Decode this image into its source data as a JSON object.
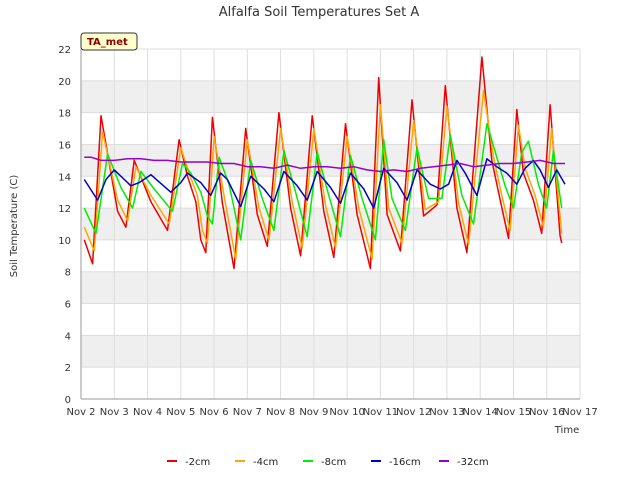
{
  "chart_data": {
    "type": "line",
    "title": "Alfalfa Soil Temperatures Set A",
    "xlabel": "Time",
    "ylabel": "Soil Temperature (C)",
    "badge": "TA_met",
    "ylim": [
      0,
      22
    ],
    "y_ticks": [
      0,
      2,
      4,
      6,
      8,
      10,
      12,
      14,
      16,
      18,
      20,
      22
    ],
    "x_range": [
      2,
      17
    ],
    "x_ticks": [
      {
        "v": 2,
        "label": "Nov 2"
      },
      {
        "v": 3,
        "label": "Nov 3"
      },
      {
        "v": 4,
        "label": "Nov 4"
      },
      {
        "v": 5,
        "label": "Nov 5"
      },
      {
        "v": 6,
        "label": "Nov 6"
      },
      {
        "v": 7,
        "label": "Nov 7"
      },
      {
        "v": 8,
        "label": "Nov 8"
      },
      {
        "v": 9,
        "label": "Nov 9"
      },
      {
        "v": 10,
        "label": "Nov 10"
      },
      {
        "v": 11,
        "label": "Nov 11"
      },
      {
        "v": 12,
        "label": "Nov 12"
      },
      {
        "v": 13,
        "label": "Nov 13"
      },
      {
        "v": 14,
        "label": "Nov 14"
      },
      {
        "v": 15,
        "label": "Nov 15"
      },
      {
        "v": 16,
        "label": "Nov 16"
      },
      {
        "v": 17,
        "label": "Nov 17"
      }
    ],
    "grid": true,
    "legend_position": "bottom",
    "series": [
      {
        "name": "-2cm",
        "color": "#ee0000",
        "points": [
          [
            2.1,
            10.0
          ],
          [
            2.35,
            8.5
          ],
          [
            2.6,
            17.8
          ],
          [
            3.1,
            11.8
          ],
          [
            3.35,
            10.8
          ],
          [
            3.6,
            15.0
          ],
          [
            4.1,
            12.4
          ],
          [
            4.6,
            10.6
          ],
          [
            4.95,
            16.3
          ],
          [
            5.2,
            14.0
          ],
          [
            5.45,
            12.4
          ],
          [
            5.6,
            10.0
          ],
          [
            5.75,
            9.2
          ],
          [
            5.95,
            17.7
          ],
          [
            6.25,
            12.3
          ],
          [
            6.6,
            8.2
          ],
          [
            6.95,
            17.0
          ],
          [
            7.3,
            11.6
          ],
          [
            7.6,
            9.6
          ],
          [
            7.95,
            18.0
          ],
          [
            8.3,
            12.0
          ],
          [
            8.6,
            9.0
          ],
          [
            8.95,
            17.8
          ],
          [
            9.3,
            11.8
          ],
          [
            9.6,
            8.9
          ],
          [
            9.95,
            17.3
          ],
          [
            10.3,
            11.6
          ],
          [
            10.7,
            8.2
          ],
          [
            10.95,
            20.2
          ],
          [
            11.2,
            11.6
          ],
          [
            11.6,
            9.3
          ],
          [
            11.95,
            18.8
          ],
          [
            12.3,
            11.5
          ],
          [
            12.7,
            12.2
          ],
          [
            12.95,
            19.7
          ],
          [
            13.3,
            12.0
          ],
          [
            13.6,
            9.2
          ],
          [
            14.05,
            21.5
          ],
          [
            14.35,
            15.0
          ],
          [
            14.6,
            12.5
          ],
          [
            14.85,
            10.1
          ],
          [
            15.1,
            18.2
          ],
          [
            15.3,
            14.2
          ],
          [
            15.6,
            12.5
          ],
          [
            15.85,
            10.4
          ],
          [
            16.1,
            18.5
          ],
          [
            16.4,
            10.3
          ],
          [
            16.45,
            9.8
          ]
        ]
      },
      {
        "name": "-4cm",
        "color": "#ffa500",
        "points": [
          [
            2.1,
            10.8
          ],
          [
            2.4,
            9.3
          ],
          [
            2.65,
            16.8
          ],
          [
            3.1,
            12.5
          ],
          [
            3.4,
            11.2
          ],
          [
            3.65,
            14.6
          ],
          [
            4.1,
            12.8
          ],
          [
            4.65,
            11.0
          ],
          [
            5.0,
            15.8
          ],
          [
            5.25,
            14.2
          ],
          [
            5.5,
            12.8
          ],
          [
            5.65,
            10.6
          ],
          [
            5.8,
            9.8
          ],
          [
            6.0,
            16.5
          ],
          [
            6.3,
            12.8
          ],
          [
            6.65,
            8.8
          ],
          [
            7.0,
            16.3
          ],
          [
            7.35,
            12.0
          ],
          [
            7.65,
            10.0
          ],
          [
            8.0,
            17.0
          ],
          [
            8.35,
            12.4
          ],
          [
            8.65,
            9.5
          ],
          [
            9.0,
            17.0
          ],
          [
            9.35,
            12.2
          ],
          [
            9.65,
            9.5
          ],
          [
            10.0,
            16.5
          ],
          [
            10.35,
            12.0
          ],
          [
            10.75,
            8.8
          ],
          [
            11.0,
            18.5
          ],
          [
            11.25,
            12.0
          ],
          [
            11.65,
            9.8
          ],
          [
            12.0,
            17.5
          ],
          [
            12.35,
            11.9
          ],
          [
            12.75,
            12.4
          ],
          [
            13.0,
            18.4
          ],
          [
            13.35,
            12.3
          ],
          [
            13.65,
            9.7
          ],
          [
            14.1,
            19.4
          ],
          [
            14.4,
            15.2
          ],
          [
            14.65,
            12.8
          ],
          [
            14.9,
            10.6
          ],
          [
            15.15,
            17.2
          ],
          [
            15.35,
            14.5
          ],
          [
            15.65,
            12.8
          ],
          [
            15.9,
            10.8
          ],
          [
            16.15,
            17.0
          ],
          [
            16.45,
            10.4
          ]
        ]
      },
      {
        "name": "-8cm",
        "color": "#00ee00",
        "points": [
          [
            2.1,
            12.0
          ],
          [
            2.45,
            10.4
          ],
          [
            2.8,
            15.4
          ],
          [
            3.2,
            13.3
          ],
          [
            3.55,
            12.0
          ],
          [
            3.8,
            14.3
          ],
          [
            4.2,
            13.2
          ],
          [
            4.75,
            11.8
          ],
          [
            5.05,
            14.8
          ],
          [
            5.3,
            14.2
          ],
          [
            5.6,
            13.0
          ],
          [
            5.8,
            11.5
          ],
          [
            5.95,
            11.0
          ],
          [
            6.15,
            15.2
          ],
          [
            6.45,
            13.5
          ],
          [
            6.8,
            10.0
          ],
          [
            7.1,
            15.0
          ],
          [
            7.45,
            12.6
          ],
          [
            7.8,
            10.6
          ],
          [
            8.1,
            15.6
          ],
          [
            8.45,
            13.0
          ],
          [
            8.8,
            10.2
          ],
          [
            9.1,
            15.5
          ],
          [
            9.45,
            12.8
          ],
          [
            9.8,
            10.2
          ],
          [
            10.1,
            15.3
          ],
          [
            10.45,
            12.6
          ],
          [
            10.85,
            10.0
          ],
          [
            11.1,
            16.3
          ],
          [
            11.35,
            12.6
          ],
          [
            11.75,
            10.6
          ],
          [
            12.1,
            15.8
          ],
          [
            12.45,
            12.6
          ],
          [
            12.85,
            12.6
          ],
          [
            13.1,
            16.6
          ],
          [
            13.45,
            12.8
          ],
          [
            13.8,
            11.0
          ],
          [
            14.2,
            17.3
          ],
          [
            14.5,
            15.2
          ],
          [
            14.75,
            13.4
          ],
          [
            15.0,
            12.0
          ],
          [
            15.25,
            15.5
          ],
          [
            15.45,
            16.2
          ],
          [
            15.75,
            13.5
          ],
          [
            16.0,
            12.0
          ],
          [
            16.2,
            15.6
          ],
          [
            16.45,
            12.0
          ]
        ]
      },
      {
        "name": "-16cm",
        "color": "#0000cc",
        "points": [
          [
            2.1,
            13.8
          ],
          [
            2.5,
            12.5
          ],
          [
            2.75,
            13.8
          ],
          [
            3.0,
            14.4
          ],
          [
            3.5,
            13.4
          ],
          [
            3.75,
            13.6
          ],
          [
            4.1,
            14.1
          ],
          [
            4.7,
            13.0
          ],
          [
            5.0,
            13.6
          ],
          [
            5.2,
            14.2
          ],
          [
            5.6,
            13.6
          ],
          [
            5.9,
            12.8
          ],
          [
            6.2,
            14.2
          ],
          [
            6.4,
            13.8
          ],
          [
            6.8,
            12.1
          ],
          [
            7.1,
            14.0
          ],
          [
            7.5,
            13.2
          ],
          [
            7.8,
            12.4
          ],
          [
            8.1,
            14.3
          ],
          [
            8.5,
            13.4
          ],
          [
            8.8,
            12.5
          ],
          [
            9.1,
            14.3
          ],
          [
            9.5,
            13.3
          ],
          [
            9.8,
            12.3
          ],
          [
            10.1,
            14.2
          ],
          [
            10.5,
            13.2
          ],
          [
            10.8,
            12.0
          ],
          [
            11.1,
            14.5
          ],
          [
            11.5,
            13.6
          ],
          [
            11.8,
            12.5
          ],
          [
            12.1,
            14.4
          ],
          [
            12.5,
            13.5
          ],
          [
            12.8,
            13.2
          ],
          [
            13.05,
            13.5
          ],
          [
            13.3,
            15.0
          ],
          [
            13.55,
            14.2
          ],
          [
            13.9,
            12.8
          ],
          [
            14.2,
            15.1
          ],
          [
            14.5,
            14.6
          ],
          [
            14.8,
            14.2
          ],
          [
            15.1,
            13.5
          ],
          [
            15.35,
            14.5
          ],
          [
            15.6,
            15.0
          ],
          [
            15.8,
            14.4
          ],
          [
            16.05,
            13.3
          ],
          [
            16.3,
            14.4
          ],
          [
            16.55,
            13.5
          ]
        ]
      },
      {
        "name": "-32cm",
        "color": "#9900cc",
        "points": [
          [
            2.1,
            15.2
          ],
          [
            2.3,
            15.2
          ],
          [
            2.6,
            15.0
          ],
          [
            3.0,
            15.0
          ],
          [
            3.4,
            15.1
          ],
          [
            3.8,
            15.1
          ],
          [
            4.2,
            15.0
          ],
          [
            4.6,
            15.0
          ],
          [
            5.0,
            14.9
          ],
          [
            5.4,
            14.9
          ],
          [
            5.8,
            14.9
          ],
          [
            6.2,
            14.8
          ],
          [
            6.6,
            14.8
          ],
          [
            7.0,
            14.6
          ],
          [
            7.4,
            14.6
          ],
          [
            7.8,
            14.5
          ],
          [
            8.2,
            14.7
          ],
          [
            8.6,
            14.5
          ],
          [
            9.0,
            14.6
          ],
          [
            9.4,
            14.6
          ],
          [
            9.8,
            14.5
          ],
          [
            10.2,
            14.6
          ],
          [
            10.6,
            14.4
          ],
          [
            11.0,
            14.3
          ],
          [
            11.4,
            14.4
          ],
          [
            11.8,
            14.3
          ],
          [
            12.2,
            14.5
          ],
          [
            12.6,
            14.6
          ],
          [
            13.0,
            14.7
          ],
          [
            13.4,
            14.8
          ],
          [
            13.8,
            14.6
          ],
          [
            14.2,
            14.7
          ],
          [
            14.6,
            14.8
          ],
          [
            15.0,
            14.8
          ],
          [
            15.4,
            14.9
          ],
          [
            15.8,
            15.0
          ],
          [
            16.2,
            14.8
          ],
          [
            16.55,
            14.8
          ]
        ]
      }
    ]
  }
}
